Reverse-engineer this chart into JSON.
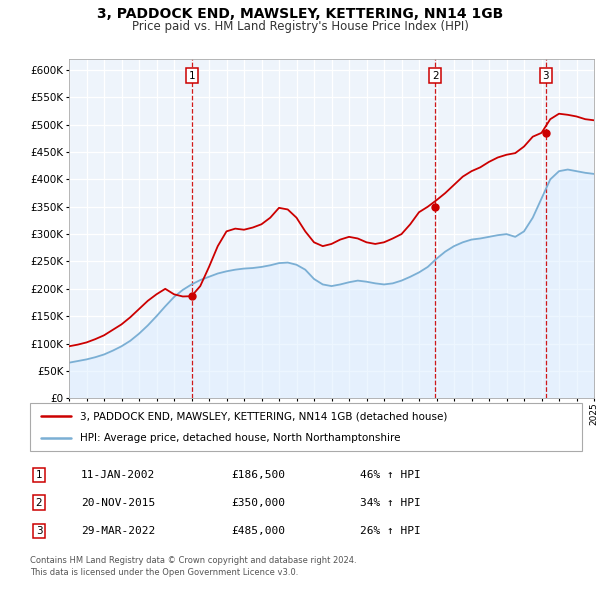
{
  "title": "3, PADDOCK END, MAWSLEY, KETTERING, NN14 1GB",
  "subtitle": "Price paid vs. HM Land Registry's House Price Index (HPI)",
  "xlim_start": 1995.0,
  "xlim_end": 2025.0,
  "ylim": [
    0,
    620000
  ],
  "yticks": [
    0,
    50000,
    100000,
    150000,
    200000,
    250000,
    300000,
    350000,
    400000,
    450000,
    500000,
    550000,
    600000
  ],
  "sale_dates": [
    2002.04,
    2015.92,
    2022.24
  ],
  "sale_prices": [
    186500,
    350000,
    485000
  ],
  "sale_labels": [
    "1",
    "2",
    "3"
  ],
  "vline_color": "#cc0000",
  "sale_color": "#cc0000",
  "hpi_color": "#7bafd4",
  "hpi_fill_color": "#ddeeff",
  "legend_sale_label": "3, PADDOCK END, MAWSLEY, KETTERING, NN14 1GB (detached house)",
  "legend_hpi_label": "HPI: Average price, detached house, North Northamptonshire",
  "table_rows": [
    [
      "1",
      "11-JAN-2002",
      "£186,500",
      "46% ↑ HPI"
    ],
    [
      "2",
      "20-NOV-2015",
      "£350,000",
      "34% ↑ HPI"
    ],
    [
      "3",
      "29-MAR-2022",
      "£485,000",
      "26% ↑ HPI"
    ]
  ],
  "footer": "Contains HM Land Registry data © Crown copyright and database right 2024.\nThis data is licensed under the Open Government Licence v3.0.",
  "bg_color": "#ffffff",
  "grid_color": "#cccccc",
  "hpi_curve_x": [
    1995.0,
    1995.5,
    1996.0,
    1996.5,
    1997.0,
    1997.5,
    1998.0,
    1998.5,
    1999.0,
    1999.5,
    2000.0,
    2000.5,
    2001.0,
    2001.5,
    2002.0,
    2002.5,
    2003.0,
    2003.5,
    2004.0,
    2004.5,
    2005.0,
    2005.5,
    2006.0,
    2006.5,
    2007.0,
    2007.5,
    2008.0,
    2008.5,
    2009.0,
    2009.5,
    2010.0,
    2010.5,
    2011.0,
    2011.5,
    2012.0,
    2012.5,
    2013.0,
    2013.5,
    2014.0,
    2014.5,
    2015.0,
    2015.5,
    2016.0,
    2016.5,
    2017.0,
    2017.5,
    2018.0,
    2018.5,
    2019.0,
    2019.5,
    2020.0,
    2020.5,
    2021.0,
    2021.5,
    2022.0,
    2022.5,
    2023.0,
    2023.5,
    2024.0,
    2024.5,
    2025.0
  ],
  "hpi_curve_y": [
    65000,
    68000,
    71000,
    75000,
    80000,
    87000,
    95000,
    105000,
    118000,
    133000,
    150000,
    168000,
    185000,
    198000,
    208000,
    216000,
    222000,
    228000,
    232000,
    235000,
    237000,
    238000,
    240000,
    243000,
    247000,
    248000,
    244000,
    235000,
    218000,
    208000,
    205000,
    208000,
    212000,
    215000,
    213000,
    210000,
    208000,
    210000,
    215000,
    222000,
    230000,
    240000,
    255000,
    268000,
    278000,
    285000,
    290000,
    292000,
    295000,
    298000,
    300000,
    295000,
    305000,
    330000,
    365000,
    400000,
    415000,
    418000,
    415000,
    412000,
    410000
  ],
  "red_curve_x": [
    1995.0,
    1995.5,
    1996.0,
    1996.5,
    1997.0,
    1997.5,
    1998.0,
    1998.5,
    1999.0,
    1999.5,
    2000.0,
    2000.5,
    2001.0,
    2001.5,
    2002.0,
    2002.5,
    2003.0,
    2003.5,
    2004.0,
    2004.5,
    2005.0,
    2005.5,
    2006.0,
    2006.5,
    2007.0,
    2007.5,
    2008.0,
    2008.5,
    2009.0,
    2009.5,
    2010.0,
    2010.5,
    2011.0,
    2011.5,
    2012.0,
    2012.5,
    2013.0,
    2013.5,
    2014.0,
    2014.5,
    2015.0,
    2015.5,
    2016.0,
    2016.5,
    2017.0,
    2017.5,
    2018.0,
    2018.5,
    2019.0,
    2019.5,
    2020.0,
    2020.5,
    2021.0,
    2021.5,
    2022.0,
    2022.5,
    2023.0,
    2023.5,
    2024.0,
    2024.5,
    2025.0
  ],
  "red_curve_y": [
    95000,
    98000,
    102000,
    108000,
    115000,
    125000,
    135000,
    148000,
    163000,
    178000,
    190000,
    200000,
    190000,
    186000,
    186500,
    205000,
    240000,
    278000,
    305000,
    310000,
    308000,
    312000,
    318000,
    330000,
    348000,
    345000,
    330000,
    305000,
    285000,
    278000,
    282000,
    290000,
    295000,
    292000,
    285000,
    282000,
    285000,
    292000,
    300000,
    318000,
    340000,
    350000,
    362000,
    375000,
    390000,
    405000,
    415000,
    422000,
    432000,
    440000,
    445000,
    448000,
    460000,
    478000,
    485000,
    510000,
    520000,
    518000,
    515000,
    510000,
    508000
  ]
}
